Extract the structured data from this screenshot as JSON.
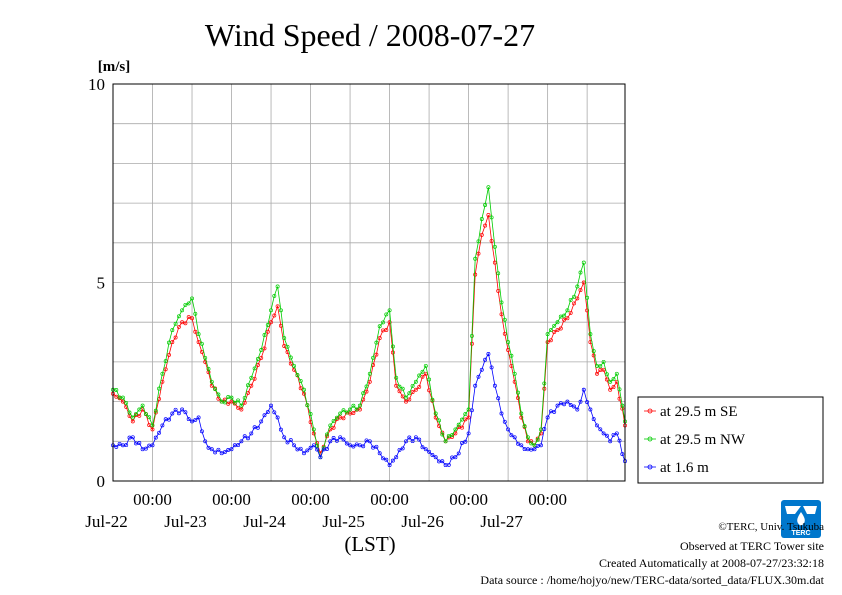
{
  "chart_data": {
    "type": "line",
    "title": "Wind Speed / 2008-07-27",
    "ylabel": "[m/s]",
    "xlabel": "(LST)",
    "ylim": [
      0,
      10
    ],
    "yticks": [
      "0",
      "5",
      "10"
    ],
    "xlim": [
      "2008-07-21 12:00",
      "2008-07-27 23:30"
    ],
    "x_major_ticks": [
      {
        "time": "00:00",
        "date": "Jul-22"
      },
      {
        "time": "00:00",
        "date": "Jul-23"
      },
      {
        "time": "00:00",
        "date": "Jul-24"
      },
      {
        "time": "00:00",
        "date": "Jul-25"
      },
      {
        "time": "00:00",
        "date": "Jul-26"
      },
      {
        "time": "00:00",
        "date": "Jul-27"
      }
    ],
    "grid": true,
    "legend_position": "right",
    "series": [
      {
        "name": "at 29.5 m SE",
        "color": "#ff0000",
        "marker": "circle",
        "points": [
          [
            "07-21 12:00",
            2.2
          ],
          [
            "07-21 15:00",
            2.0
          ],
          [
            "07-21 18:00",
            1.5
          ],
          [
            "07-21 21:00",
            1.8
          ],
          [
            "07-22 00:00",
            1.3
          ],
          [
            "07-22 03:00",
            2.5
          ],
          [
            "07-22 06:00",
            3.5
          ],
          [
            "07-22 09:00",
            4.0
          ],
          [
            "07-22 12:00",
            4.1
          ],
          [
            "07-22 14:00",
            3.5
          ],
          [
            "07-22 16:00",
            3.0
          ],
          [
            "07-22 18:00",
            2.4
          ],
          [
            "07-22 21:00",
            2.0
          ],
          [
            "07-23 00:00",
            2.0
          ],
          [
            "07-23 03:00",
            1.8
          ],
          [
            "07-23 06:00",
            2.4
          ],
          [
            "07-23 09:00",
            3.1
          ],
          [
            "07-23 12:00",
            4.0
          ],
          [
            "07-23 14:00",
            4.4
          ],
          [
            "07-23 16:00",
            3.4
          ],
          [
            "07-23 19:00",
            2.8
          ],
          [
            "07-23 22:00",
            2.2
          ],
          [
            "07-24 01:00",
            1.2
          ],
          [
            "07-24 03:00",
            0.7
          ],
          [
            "07-24 06:00",
            1.3
          ],
          [
            "07-24 09:00",
            1.6
          ],
          [
            "07-24 12:00",
            1.7
          ],
          [
            "07-24 15:00",
            1.8
          ],
          [
            "07-24 18:00",
            2.5
          ],
          [
            "07-24 21:00",
            3.6
          ],
          [
            "07-25 00:00",
            4.0
          ],
          [
            "07-25 02:00",
            2.4
          ],
          [
            "07-25 05:00",
            2.0
          ],
          [
            "07-25 08:00",
            2.3
          ],
          [
            "07-25 11:00",
            2.7
          ],
          [
            "07-25 14:00",
            1.6
          ],
          [
            "07-25 17:00",
            1.0
          ],
          [
            "07-25 20:00",
            1.2
          ],
          [
            "07-26 00:00",
            1.6
          ],
          [
            "07-26 02:00",
            5.2
          ],
          [
            "07-26 04:00",
            6.2
          ],
          [
            "07-26 06:00",
            6.7
          ],
          [
            "07-26 08:00",
            5.5
          ],
          [
            "07-26 10:00",
            4.2
          ],
          [
            "07-26 12:00",
            3.3
          ],
          [
            "07-26 14:00",
            2.5
          ],
          [
            "07-26 16:00",
            1.6
          ],
          [
            "07-26 18:00",
            1.0
          ],
          [
            "07-26 20:00",
            0.9
          ],
          [
            "07-26 22:00",
            1.2
          ],
          [
            "07-27 00:00",
            3.5
          ],
          [
            "07-27 03:00",
            3.8
          ],
          [
            "07-27 06:00",
            4.1
          ],
          [
            "07-27 09:00",
            4.6
          ],
          [
            "07-27 11:00",
            5.0
          ],
          [
            "07-27 13:00",
            3.5
          ],
          [
            "07-27 15:00",
            2.7
          ],
          [
            "07-27 17:00",
            2.8
          ],
          [
            "07-27 19:00",
            2.3
          ],
          [
            "07-27 21:00",
            2.5
          ],
          [
            "07-27 23:30",
            1.4
          ]
        ]
      },
      {
        "name": "at 29.5 m NW",
        "color": "#00cc00",
        "marker": "circle",
        "points": [
          [
            "07-21 12:00",
            2.3
          ],
          [
            "07-21 15:00",
            2.1
          ],
          [
            "07-21 18:00",
            1.6
          ],
          [
            "07-21 21:00",
            1.9
          ],
          [
            "07-22 00:00",
            1.4
          ],
          [
            "07-22 03:00",
            2.7
          ],
          [
            "07-22 06:00",
            3.8
          ],
          [
            "07-22 09:00",
            4.3
          ],
          [
            "07-22 12:00",
            4.6
          ],
          [
            "07-22 14:00",
            3.7
          ],
          [
            "07-22 16:00",
            3.1
          ],
          [
            "07-22 18:00",
            2.5
          ],
          [
            "07-22 21:00",
            2.0
          ],
          [
            "07-23 00:00",
            2.1
          ],
          [
            "07-23 03:00",
            1.9
          ],
          [
            "07-23 06:00",
            2.6
          ],
          [
            "07-23 09:00",
            3.3
          ],
          [
            "07-23 12:00",
            4.3
          ],
          [
            "07-23 14:00",
            4.9
          ],
          [
            "07-23 16:00",
            3.6
          ],
          [
            "07-23 19:00",
            2.9
          ],
          [
            "07-23 22:00",
            2.3
          ],
          [
            "07-24 01:00",
            1.3
          ],
          [
            "07-24 03:00",
            0.6
          ],
          [
            "07-24 06:00",
            1.4
          ],
          [
            "07-24 09:00",
            1.7
          ],
          [
            "07-24 12:00",
            1.8
          ],
          [
            "07-24 15:00",
            1.9
          ],
          [
            "07-24 18:00",
            2.7
          ],
          [
            "07-24 21:00",
            3.9
          ],
          [
            "07-25 00:00",
            4.3
          ],
          [
            "07-25 02:00",
            2.6
          ],
          [
            "07-25 05:00",
            2.1
          ],
          [
            "07-25 08:00",
            2.5
          ],
          [
            "07-25 11:00",
            2.9
          ],
          [
            "07-25 14:00",
            1.7
          ],
          [
            "07-25 17:00",
            1.0
          ],
          [
            "07-25 20:00",
            1.3
          ],
          [
            "07-26 00:00",
            1.8
          ],
          [
            "07-26 02:00",
            5.6
          ],
          [
            "07-26 04:00",
            6.6
          ],
          [
            "07-26 06:00",
            7.4
          ],
          [
            "07-26 08:00",
            5.9
          ],
          [
            "07-26 10:00",
            4.5
          ],
          [
            "07-26 12:00",
            3.5
          ],
          [
            "07-26 14:00",
            2.7
          ],
          [
            "07-26 16:00",
            1.7
          ],
          [
            "07-26 18:00",
            1.1
          ],
          [
            "07-26 20:00",
            0.9
          ],
          [
            "07-26 22:00",
            1.3
          ],
          [
            "07-27 00:00",
            3.7
          ],
          [
            "07-27 03:00",
            4.0
          ],
          [
            "07-27 06:00",
            4.3
          ],
          [
            "07-27 09:00",
            4.9
          ],
          [
            "07-27 11:00",
            5.5
          ],
          [
            "07-27 13:00",
            3.7
          ],
          [
            "07-27 15:00",
            2.9
          ],
          [
            "07-27 17:00",
            3.0
          ],
          [
            "07-27 19:00",
            2.5
          ],
          [
            "07-27 21:00",
            2.7
          ],
          [
            "07-27 23:30",
            1.5
          ]
        ]
      },
      {
        "name": "at 1.6 m",
        "color": "#0000ff",
        "marker": "circle",
        "points": [
          [
            "07-21 12:00",
            0.9
          ],
          [
            "07-21 15:00",
            0.9
          ],
          [
            "07-21 18:00",
            1.1
          ],
          [
            "07-21 21:00",
            0.8
          ],
          [
            "07-22 00:00",
            0.9
          ],
          [
            "07-22 03:00",
            1.4
          ],
          [
            "07-22 06:00",
            1.7
          ],
          [
            "07-22 09:00",
            1.8
          ],
          [
            "07-22 12:00",
            1.5
          ],
          [
            "07-22 14:00",
            1.6
          ],
          [
            "07-22 16:00",
            1.0
          ],
          [
            "07-22 18:00",
            0.8
          ],
          [
            "07-22 21:00",
            0.7
          ],
          [
            "07-23 00:00",
            0.8
          ],
          [
            "07-23 03:00",
            1.0
          ],
          [
            "07-23 06:00",
            1.2
          ],
          [
            "07-23 09:00",
            1.5
          ],
          [
            "07-23 12:00",
            1.9
          ],
          [
            "07-23 14:00",
            1.6
          ],
          [
            "07-23 16:00",
            1.1
          ],
          [
            "07-23 19:00",
            0.9
          ],
          [
            "07-23 22:00",
            0.7
          ],
          [
            "07-24 01:00",
            0.9
          ],
          [
            "07-24 03:00",
            0.6
          ],
          [
            "07-24 06:00",
            1.0
          ],
          [
            "07-24 09:00",
            1.1
          ],
          [
            "07-24 12:00",
            0.9
          ],
          [
            "07-24 15:00",
            0.9
          ],
          [
            "07-24 18:00",
            1.0
          ],
          [
            "07-24 21:00",
            0.7
          ],
          [
            "07-25 00:00",
            0.4
          ],
          [
            "07-25 02:00",
            0.6
          ],
          [
            "07-25 05:00",
            1.0
          ],
          [
            "07-25 08:00",
            1.1
          ],
          [
            "07-25 11:00",
            0.8
          ],
          [
            "07-25 14:00",
            0.6
          ],
          [
            "07-25 17:00",
            0.4
          ],
          [
            "07-25 20:00",
            0.6
          ],
          [
            "07-26 00:00",
            1.2
          ],
          [
            "07-26 02:00",
            2.4
          ],
          [
            "07-26 04:00",
            2.8
          ],
          [
            "07-26 06:00",
            3.2
          ],
          [
            "07-26 08:00",
            2.4
          ],
          [
            "07-26 10:00",
            1.7
          ],
          [
            "07-26 12:00",
            1.3
          ],
          [
            "07-26 14:00",
            1.1
          ],
          [
            "07-26 16:00",
            0.9
          ],
          [
            "07-26 18:00",
            0.8
          ],
          [
            "07-26 20:00",
            0.8
          ],
          [
            "07-26 22:00",
            0.9
          ],
          [
            "07-27 00:00",
            1.6
          ],
          [
            "07-27 03:00",
            1.9
          ],
          [
            "07-27 06:00",
            2.0
          ],
          [
            "07-27 09:00",
            1.8
          ],
          [
            "07-27 11:00",
            2.3
          ],
          [
            "07-27 13:00",
            1.8
          ],
          [
            "07-27 15:00",
            1.4
          ],
          [
            "07-27 17:00",
            1.2
          ],
          [
            "07-27 19:00",
            1.0
          ],
          [
            "07-27 21:00",
            1.2
          ],
          [
            "07-27 23:30",
            0.5
          ]
        ]
      }
    ]
  },
  "credits": {
    "copyright": "©TERC, Univ. Tsukuba",
    "observed": "Observed at TERC Tower site",
    "created": "Created Automatically at 2008-07-27/23:32:18",
    "source": "Data source : /home/hojyo/new/TERC-data/sorted_data/FLUX.30m.dat",
    "logo_text": "TERC"
  },
  "colors": {
    "grid": "#aaaaaa",
    "frame": "#000000",
    "logo": "#0077cc"
  }
}
